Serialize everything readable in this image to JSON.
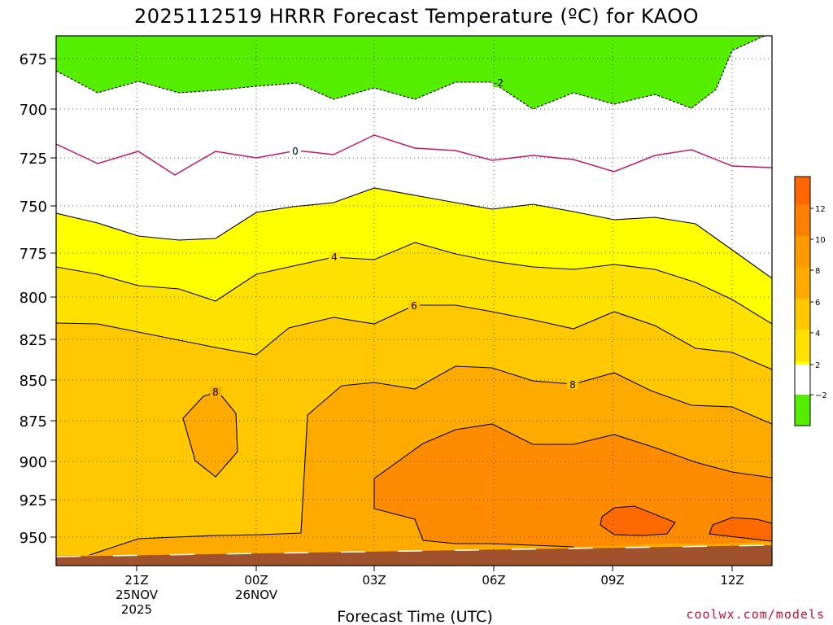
{
  "chart_data": {
    "type": "heatmap",
    "title": "2025112519 HRRR Forecast Temperature (ºC) for KAOO",
    "xlabel": "Forecast Time (UTC)",
    "ylabel": "",
    "credit": "coolwx.com/models",
    "y_axis": {
      "ticks": [
        "675",
        "700",
        "725",
        "750",
        "775",
        "800",
        "825",
        "850",
        "875",
        "900",
        "925",
        "950"
      ],
      "range_hpa": [
        960,
        663
      ]
    },
    "x_axis": {
      "ticks": [
        {
          "label": "21Z",
          "date": "25NOV",
          "year": "2025"
        },
        {
          "label": "00Z",
          "date": "26NOV",
          "year": ""
        },
        {
          "label": "03Z",
          "date": "",
          "year": ""
        },
        {
          "label": "06Z",
          "date": "",
          "year": ""
        },
        {
          "label": "09Z",
          "date": "",
          "year": ""
        },
        {
          "label": "12Z",
          "date": "",
          "year": ""
        }
      ]
    },
    "grid": true,
    "contour_levels": [
      -2,
      0,
      2,
      4,
      6,
      8,
      10,
      12
    ],
    "contour_labels": [
      "-2",
      "0",
      "4",
      "6",
      "8",
      "8"
    ],
    "colorbar": {
      "placement": "right",
      "labels": [
        "12",
        "10",
        "8",
        "6",
        "4",
        "2",
        "−2"
      ],
      "colors": [
        "#ff6600",
        "#ff7f00",
        "#ff9900",
        "#ffaa00",
        "#ffc800",
        "#ffe100",
        "#ffff00",
        "#ffffff",
        "#55ee00"
      ]
    },
    "fills": {
      "lt_m2": "#55ee00",
      "m2_2": "#ffffff",
      "2_4": "#ffff00",
      "4_6": "#ffe100",
      "6_8": "#ffc800",
      "8_10": "#ffaa00",
      "10_12": "#ff8c00",
      "12_14": "#ff6a00",
      "ground": "#a0522d"
    }
  }
}
